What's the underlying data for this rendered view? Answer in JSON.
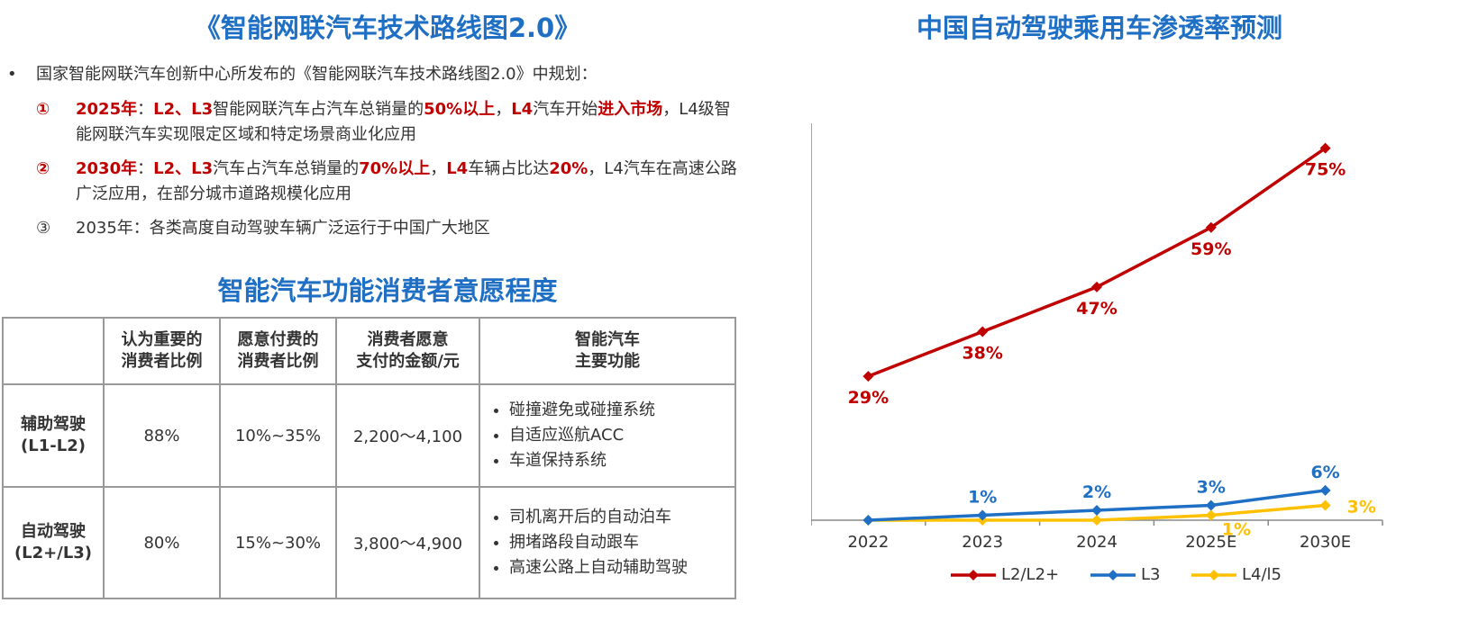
{
  "left": {
    "title": "《智能网联汽车技术路线图2.0》",
    "intro": "国家智能网联汽车创新中心所发布的《智能网联汽车技术路线图2.0》中规划：",
    "items": [
      {
        "mark": "①",
        "parts": [
          {
            "t": "2025年",
            "hl": true
          },
          {
            "t": "：",
            "hl": false
          },
          {
            "t": "L2、L3",
            "hl": true
          },
          {
            "t": "智能网联汽车占汽车总销量的",
            "hl": false
          },
          {
            "t": "50%以上",
            "hl": true
          },
          {
            "t": "，",
            "hl": false
          },
          {
            "t": "L4",
            "hl": true
          },
          {
            "t": "汽车开始",
            "hl": false
          },
          {
            "t": "进入市场",
            "hl": true
          },
          {
            "t": "，L4级智能网联汽车实现限定区域和特定场景商业化应用",
            "hl": false
          }
        ]
      },
      {
        "mark": "②",
        "parts": [
          {
            "t": "2030年",
            "hl": true
          },
          {
            "t": "：",
            "hl": false
          },
          {
            "t": "L2、L3",
            "hl": true
          },
          {
            "t": "汽车占汽车总销量的",
            "hl": false
          },
          {
            "t": "70%以上",
            "hl": true
          },
          {
            "t": "，",
            "hl": false
          },
          {
            "t": "L4",
            "hl": true
          },
          {
            "t": "车辆占比达",
            "hl": false
          },
          {
            "t": "20%",
            "hl": true
          },
          {
            "t": "，L4汽车在高速公路广泛应用，在部分城市道路规模化应用",
            "hl": false
          }
        ]
      },
      {
        "mark": "③",
        "parts": [
          {
            "t": "2035年：各类高度自动驾驶车辆广泛运行于中国广大地区",
            "hl": false
          }
        ]
      }
    ]
  },
  "table": {
    "title": "智能汽车功能消费者意愿程度",
    "headers": [
      "",
      "认为重要的消费者比例",
      "愿意付费的消费者比例",
      "消费者愿意支付的金额/元",
      "智能汽车主要功能"
    ],
    "header_lines": [
      [
        ""
      ],
      [
        "认为重要的",
        "消费者比例"
      ],
      [
        "愿意付费的",
        "消费者比例"
      ],
      [
        "消费者愿意",
        "支付的金额/元"
      ],
      [
        "智能汽车",
        "主要功能"
      ]
    ],
    "rows": [
      {
        "name": "辅助驾驶(L1-L2)",
        "name_lines": [
          "辅助驾驶",
          "(L1-L2)"
        ],
        "important": "88%",
        "pay": "10%~35%",
        "amount": "2,200～4,100",
        "features": [
          "碰撞避免或碰撞系统",
          "自适应巡航ACC",
          "车道保持系统"
        ]
      },
      {
        "name": "自动驾驶(L2+/L3)",
        "name_lines": [
          "自动驾驶",
          "(L2+/L3)"
        ],
        "important": "80%",
        "pay": "15%~30%",
        "amount": "3,800～4,900",
        "features": [
          "司机离开后的自动泊车",
          "拥堵路段自动跟车",
          "高速公路上自动辅助驾驶"
        ]
      }
    ]
  },
  "chart_data": {
    "type": "line",
    "title": "中国自动驾驶乘用车渗透率预测",
    "categories": [
      "2022",
      "2023",
      "2024",
      "2025E",
      "2030E"
    ],
    "ylim": [
      0,
      80
    ],
    "yticks": [
      0,
      10,
      20,
      30,
      40,
      50,
      60,
      70,
      80
    ],
    "ytick_labels": [
      "0%",
      "10%",
      "20%",
      "30%",
      "40%",
      "50%",
      "60%",
      "70%",
      "80%"
    ],
    "grid": false,
    "legend_position": "bottom",
    "series": [
      {
        "name": "L2/L2+",
        "color": "#c00000",
        "values": [
          29,
          38,
          47,
          59,
          75
        ],
        "labels": [
          "29%",
          "38%",
          "47%",
          "59%",
          "75%"
        ],
        "label_pos": "below"
      },
      {
        "name": "L3",
        "color": "#1f6fc4",
        "values": [
          0,
          1,
          2,
          3,
          6
        ],
        "labels": [
          "",
          "1%",
          "2%",
          "3%",
          "6%"
        ],
        "label_pos": "above"
      },
      {
        "name": "L4/l5",
        "color": "#ffc000",
        "values": [
          0,
          0,
          0,
          1,
          3
        ],
        "labels": [
          "",
          "",
          "",
          "1%",
          "3%"
        ],
        "label_pos": "right"
      }
    ]
  }
}
